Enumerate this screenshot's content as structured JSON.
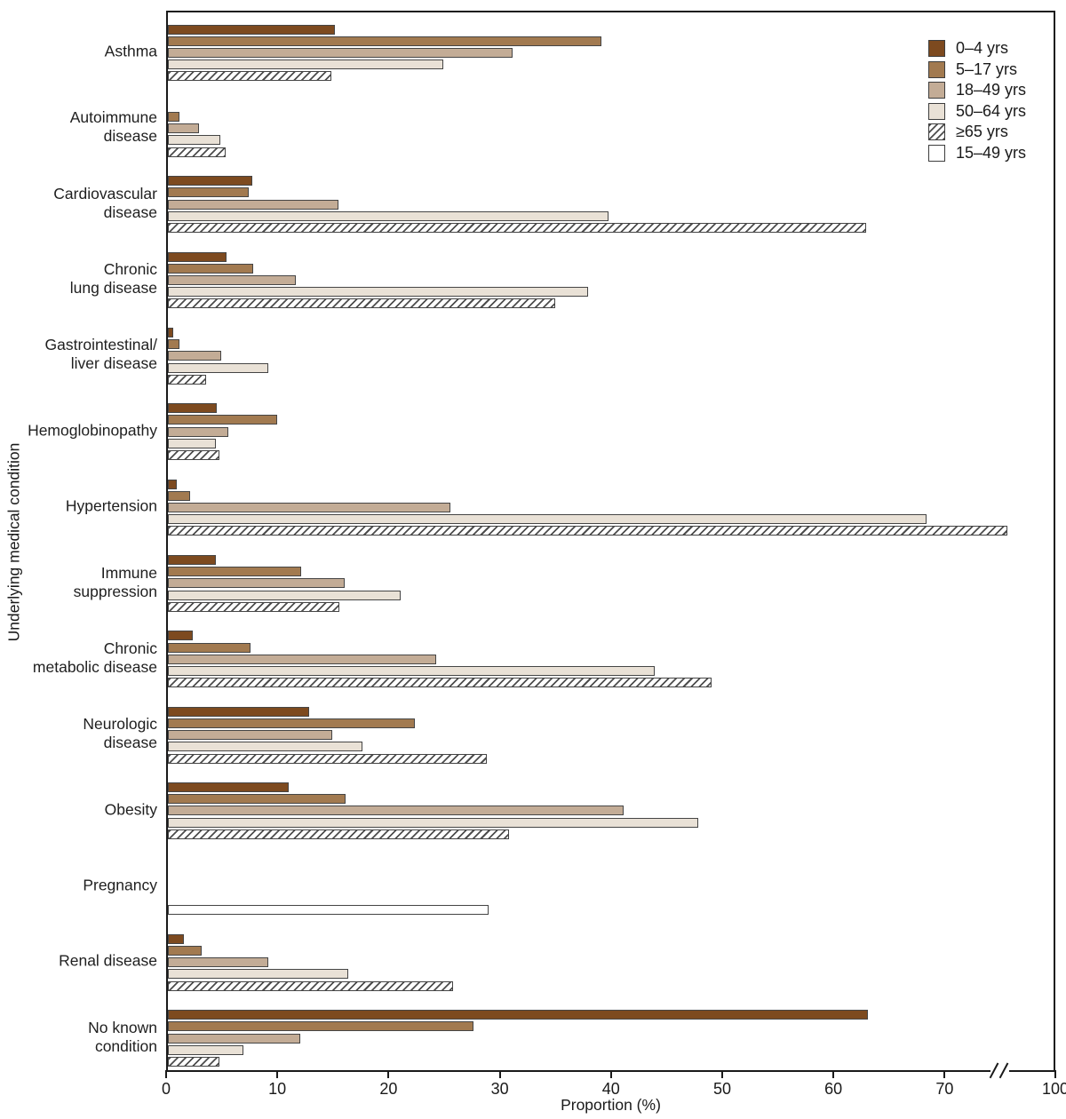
{
  "figure": {
    "x_axis_title": "Proportion (%)",
    "y_axis_title": "Underlying medical condition"
  },
  "chart_data": {
    "type": "bar",
    "orientation": "horizontal",
    "title": "",
    "xlabel": "Proportion (%)",
    "ylabel": "Underlying medical condition",
    "x_ticks": [
      0,
      10,
      20,
      30,
      40,
      50,
      60,
      70,
      100
    ],
    "x_axis_break_between": [
      75,
      100
    ],
    "xlim_linear_portion": [
      0,
      80
    ],
    "grid": false,
    "legend_position": "top-right-inside",
    "series": [
      {
        "name": "0–4 yrs",
        "fill": "#7d4a1f"
      },
      {
        "name": "5–17 yrs",
        "fill": "#a27a50"
      },
      {
        "name": "18–49 yrs",
        "fill": "#c3ac96"
      },
      {
        "name": "50–64 yrs",
        "fill": "#e9e1d6"
      },
      {
        "name": "≥65 yrs",
        "fill": "hatch"
      },
      {
        "name": "15–49 yrs",
        "fill": "#ffffff"
      }
    ],
    "groups": [
      {
        "label": "Asthma",
        "label_lines": [
          "Asthma"
        ],
        "values": [
          15.0,
          39.0,
          31.0,
          24.8,
          14.7,
          null
        ]
      },
      {
        "label": "Autoimmune disease",
        "label_lines": [
          "Autoimmune",
          "disease"
        ],
        "values": [
          null,
          1.0,
          2.8,
          4.7,
          5.2,
          null
        ]
      },
      {
        "label": "Cardiovascular disease",
        "label_lines": [
          "Cardiovascular",
          "disease"
        ],
        "values": [
          7.6,
          7.3,
          15.3,
          39.6,
          62.8,
          null
        ]
      },
      {
        "label": "Chronic lung disease",
        "label_lines": [
          "Chronic",
          "lung disease"
        ],
        "values": [
          5.3,
          7.7,
          11.5,
          37.8,
          34.8,
          null
        ]
      },
      {
        "label": "Gastrointestinal/liver disease",
        "label_lines": [
          "Gastrointestinal/",
          "liver disease"
        ],
        "values": [
          0.5,
          1.0,
          4.8,
          9.0,
          3.4,
          null
        ]
      },
      {
        "label": "Hemoglobinopathy",
        "label_lines": [
          "Hemoglobinopathy"
        ],
        "values": [
          4.4,
          9.8,
          5.4,
          4.3,
          4.6,
          null
        ]
      },
      {
        "label": "Hypertension",
        "label_lines": [
          "Hypertension"
        ],
        "values": [
          0.8,
          2.0,
          25.4,
          68.2,
          75.5,
          null
        ]
      },
      {
        "label": "Immune suppression",
        "label_lines": [
          "Immune",
          "suppression"
        ],
        "values": [
          4.3,
          12.0,
          15.9,
          20.9,
          15.4,
          null
        ]
      },
      {
        "label": "Chronic metabolic disease",
        "label_lines": [
          "Chronic",
          "metabolic disease"
        ],
        "values": [
          2.2,
          7.4,
          24.1,
          43.8,
          48.9,
          null
        ]
      },
      {
        "label": "Neurologic disease",
        "label_lines": [
          "Neurologic",
          "disease"
        ],
        "values": [
          12.7,
          22.2,
          14.8,
          17.5,
          28.7,
          null
        ]
      },
      {
        "label": "Obesity",
        "label_lines": [
          "Obesity"
        ],
        "values": [
          10.9,
          16.0,
          41.0,
          47.7,
          30.7,
          null
        ]
      },
      {
        "label": "Pregnancy",
        "label_lines": [
          "Pregnancy"
        ],
        "values": [
          null,
          null,
          null,
          null,
          null,
          28.8
        ]
      },
      {
        "label": "Renal disease",
        "label_lines": [
          "Renal disease"
        ],
        "values": [
          1.4,
          3.0,
          9.0,
          16.2,
          25.6,
          null
        ]
      },
      {
        "label": "No known condition",
        "label_lines": [
          "No known",
          "condition"
        ],
        "values": [
          62.9,
          27.5,
          11.9,
          6.8,
          4.6,
          null
        ]
      }
    ]
  },
  "colors": {
    "axis": "#1a1a1a",
    "bar_border": "#454545",
    "age_0_4": "#7d4a1f",
    "age_5_17": "#a27a50",
    "age_18_49": "#c3ac96",
    "age_50_64": "#e9e1d6",
    "age_65_plus_pattern": "gray-diagonal-hatch-on-white",
    "age_15_49": "#ffffff"
  }
}
